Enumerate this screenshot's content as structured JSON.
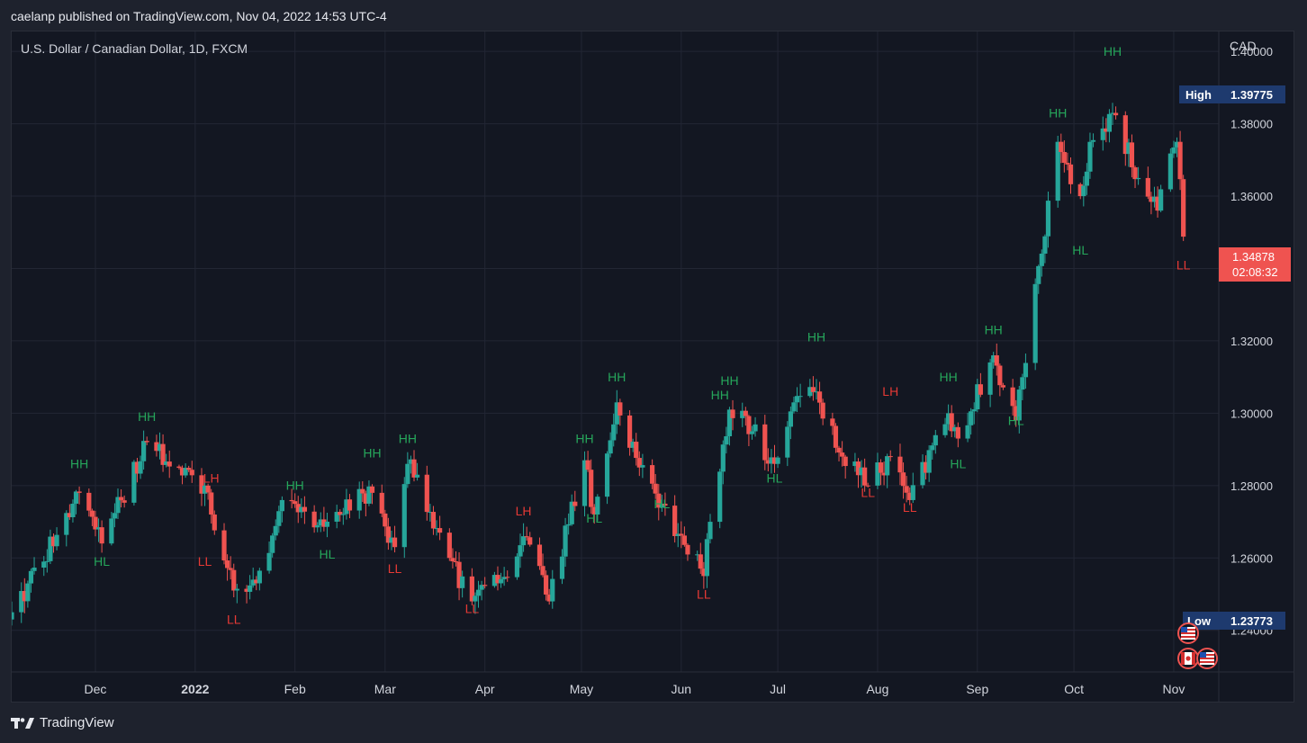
{
  "header": {
    "publish_line": "caelanp published on TradingView.com, Nov 04, 2022 14:53 UTC-4"
  },
  "footer": {
    "brand": "TradingView",
    "logo_icon": "tradingview-logo-icon"
  },
  "colors": {
    "background": "#131722",
    "outer_background": "#1e222d",
    "grid": "#222634",
    "up": "#26a69a",
    "down": "#ef5350",
    "label_green": "#26a65b",
    "label_red": "#e53935",
    "badge_bg": "#1e3a6e",
    "current_price_bg": "#ef5350"
  },
  "chart_data": {
    "type": "candlestick",
    "title": "U.S. Dollar / Canadian Dollar, 1D, FXCM",
    "currency": "CAD",
    "ylim": [
      1.2285,
      1.4055
    ],
    "y_ticks": [
      "1.24000",
      "1.26000",
      "1.28000",
      "1.30000",
      "1.32000",
      "1.34000",
      "1.36000",
      "1.38000",
      "1.40000"
    ],
    "y_tick_values": [
      1.24,
      1.26,
      1.28,
      1.3,
      1.32,
      1.34,
      1.36,
      1.38,
      1.4
    ],
    "x_range": [
      "2021-11-05",
      "2022-11-15"
    ],
    "x_ticks": [
      {
        "label": "Dec",
        "date": "2021-12-01",
        "bold": false
      },
      {
        "label": "2022",
        "date": "2022-01-01",
        "bold": true
      },
      {
        "label": "Feb",
        "date": "2022-02-01",
        "bold": false
      },
      {
        "label": "Mar",
        "date": "2022-03-01",
        "bold": false
      },
      {
        "label": "Apr",
        "date": "2022-04-01",
        "bold": false
      },
      {
        "label": "May",
        "date": "2022-05-01",
        "bold": false
      },
      {
        "label": "Jun",
        "date": "2022-06-01",
        "bold": false
      },
      {
        "label": "Jul",
        "date": "2022-07-01",
        "bold": false
      },
      {
        "label": "Aug",
        "date": "2022-08-01",
        "bold": false
      },
      {
        "label": "Sep",
        "date": "2022-09-01",
        "bold": false
      },
      {
        "label": "Oct",
        "date": "2022-10-01",
        "bold": false
      },
      {
        "label": "Nov",
        "date": "2022-11-01",
        "bold": false
      }
    ],
    "high_badge": {
      "label": "High",
      "value": "1.39775",
      "price": 1.39775
    },
    "low_badge": {
      "label": "Low",
      "value": "1.23773",
      "price": 1.23773
    },
    "current": {
      "price": 1.34878,
      "label": "1.34878",
      "countdown": "02:08:32"
    },
    "swing_points": [
      {
        "date": "2021-11-05",
        "close": 1.245
      },
      {
        "date": "2021-11-26",
        "close": 1.278
      },
      {
        "date": "2021-12-03",
        "close": 1.264
      },
      {
        "date": "2021-12-17",
        "close": 1.292
      },
      {
        "date": "2022-01-04",
        "close": 1.28
      },
      {
        "date": "2022-01-06",
        "close": 1.272
      },
      {
        "date": "2022-01-13",
        "close": 1.251
      },
      {
        "date": "2022-01-20",
        "close": 1.253
      },
      {
        "date": "2022-01-28",
        "close": 1.276
      },
      {
        "date": "2022-02-08",
        "close": 1.269
      },
      {
        "date": "2022-02-25",
        "close": 1.278
      },
      {
        "date": "2022-03-04",
        "close": 1.263
      },
      {
        "date": "2022-03-08",
        "close": 1.286
      },
      {
        "date": "2022-03-21",
        "close": 1.26
      },
      {
        "date": "2022-03-28",
        "close": 1.248
      },
      {
        "date": "2022-04-05",
        "close": 1.253
      },
      {
        "date": "2022-04-13",
        "close": 1.266
      },
      {
        "date": "2022-04-21",
        "close": 1.248
      },
      {
        "date": "2022-05-02",
        "close": 1.287
      },
      {
        "date": "2022-05-05",
        "close": 1.272
      },
      {
        "date": "2022-05-12",
        "close": 1.303
      },
      {
        "date": "2022-05-19",
        "close": 1.285
      },
      {
        "date": "2022-05-26",
        "close": 1.275
      },
      {
        "date": "2022-06-08",
        "close": 1.255
      },
      {
        "date": "2022-06-10",
        "close": 1.27
      },
      {
        "date": "2022-06-16",
        "close": 1.301
      },
      {
        "date": "2022-06-23",
        "close": 1.295
      },
      {
        "date": "2022-06-30",
        "close": 1.286
      },
      {
        "date": "2022-07-06",
        "close": 1.303
      },
      {
        "date": "2022-07-13",
        "close": 1.306
      },
      {
        "date": "2022-07-21",
        "close": 1.288
      },
      {
        "date": "2022-07-29",
        "close": 1.28
      },
      {
        "date": "2022-08-05",
        "close": 1.288
      },
      {
        "date": "2022-08-11",
        "close": 1.276
      },
      {
        "date": "2022-08-23",
        "close": 1.3
      },
      {
        "date": "2022-08-26",
        "close": 1.293
      },
      {
        "date": "2022-09-06",
        "close": 1.316
      },
      {
        "date": "2022-09-13",
        "close": 1.298
      },
      {
        "date": "2022-09-26",
        "close": 1.375
      },
      {
        "date": "2022-10-03",
        "close": 1.36
      },
      {
        "date": "2022-10-06",
        "close": 1.375
      },
      {
        "date": "2022-10-13",
        "close": 1.383
      },
      {
        "date": "2022-10-21",
        "close": 1.365
      },
      {
        "date": "2022-10-27",
        "close": 1.356
      },
      {
        "date": "2022-11-02",
        "close": 1.375
      },
      {
        "date": "2022-11-04",
        "close": 1.3488
      }
    ],
    "annotations": [
      {
        "text": "HH",
        "date": "2021-11-26",
        "price": 1.2848,
        "color": "green"
      },
      {
        "text": "HL",
        "date": "2021-12-03",
        "price": 1.2578,
        "color": "green"
      },
      {
        "text": "HH",
        "date": "2021-12-17",
        "price": 1.2978,
        "color": "green"
      },
      {
        "text": "LH",
        "date": "2022-01-06",
        "price": 1.2808,
        "color": "red"
      },
      {
        "text": "LL",
        "date": "2022-01-04",
        "price": 1.2578,
        "color": "red"
      },
      {
        "text": "LL",
        "date": "2022-01-13",
        "price": 1.2418,
        "color": "red"
      },
      {
        "text": "HH",
        "date": "2022-02-01",
        "price": 1.2788,
        "color": "green"
      },
      {
        "text": "HL",
        "date": "2022-02-11",
        "price": 1.2598,
        "color": "green"
      },
      {
        "text": "HH",
        "date": "2022-02-25",
        "price": 1.2878,
        "color": "green"
      },
      {
        "text": "LL",
        "date": "2022-03-04",
        "price": 1.2558,
        "color": "red"
      },
      {
        "text": "HH",
        "date": "2022-03-08",
        "price": 1.2918,
        "color": "green"
      },
      {
        "text": "LL",
        "date": "2022-03-28",
        "price": 1.2448,
        "color": "red"
      },
      {
        "text": "LH",
        "date": "2022-04-13",
        "price": 1.2718,
        "color": "red"
      },
      {
        "text": "HH",
        "date": "2022-05-02",
        "price": 1.2918,
        "color": "green"
      },
      {
        "text": "HL",
        "date": "2022-05-05",
        "price": 1.2698,
        "color": "green"
      },
      {
        "text": "HH",
        "date": "2022-05-12",
        "price": 1.3088,
        "color": "green"
      },
      {
        "text": "HL",
        "date": "2022-05-26",
        "price": 1.2738,
        "color": "green"
      },
      {
        "text": "LL",
        "date": "2022-06-08",
        "price": 1.2488,
        "color": "red"
      },
      {
        "text": "HH",
        "date": "2022-06-16",
        "price": 1.3078,
        "color": "green"
      },
      {
        "text": "HH",
        "date": "2022-06-13",
        "price": 1.3038,
        "color": "green"
      },
      {
        "text": "HL",
        "date": "2022-06-30",
        "price": 1.2808,
        "color": "green"
      },
      {
        "text": "HH",
        "date": "2022-07-13",
        "price": 1.3198,
        "color": "green"
      },
      {
        "text": "LL",
        "date": "2022-07-29",
        "price": 1.2768,
        "color": "red"
      },
      {
        "text": "LH",
        "date": "2022-08-05",
        "price": 1.3048,
        "color": "red"
      },
      {
        "text": "LL",
        "date": "2022-08-11",
        "price": 1.2728,
        "color": "red"
      },
      {
        "text": "HH",
        "date": "2022-08-23",
        "price": 1.3088,
        "color": "green"
      },
      {
        "text": "HL",
        "date": "2022-08-26",
        "price": 1.2848,
        "color": "green"
      },
      {
        "text": "HH",
        "date": "2022-09-06",
        "price": 1.3218,
        "color": "green"
      },
      {
        "text": "HL",
        "date": "2022-09-13",
        "price": 1.2968,
        "color": "green"
      },
      {
        "text": "HH",
        "date": "2022-09-26",
        "price": 1.3818,
        "color": "green"
      },
      {
        "text": "HL",
        "date": "2022-10-03",
        "price": 1.3438,
        "color": "green"
      },
      {
        "text": "HH",
        "date": "2022-10-13",
        "price": 1.3988,
        "color": "green"
      },
      {
        "text": "LL",
        "date": "2022-11-04",
        "price": 1.3398,
        "color": "red"
      }
    ],
    "event_markers": [
      {
        "icon": "us-flag-icon",
        "date": "2022-11-04",
        "row": 1
      },
      {
        "icon": "canada-flag-icon",
        "date": "2022-11-04",
        "row": 2
      },
      {
        "icon": "us-flag-icon",
        "date": "2022-11-05",
        "row": 2
      }
    ]
  }
}
